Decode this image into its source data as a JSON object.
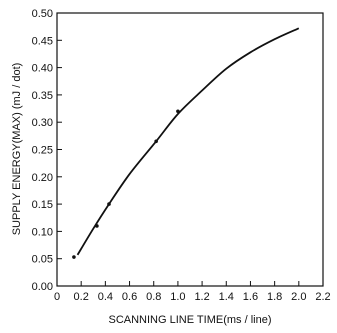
{
  "chart_data": {
    "type": "line",
    "title": "",
    "xlabel": "SCANNING  LINE  TIME(ms / line)",
    "ylabel": "SUPPLY  ENERGY(MAX)  (mJ / dot)",
    "xlim": [
      0,
      2.2
    ],
    "ylim": [
      0,
      0.5
    ],
    "x_ticks": [
      "0",
      "0.2",
      "0.4",
      "0.6",
      "0.8",
      "1.0",
      "1.2",
      "1.4",
      "1.6",
      "1.8",
      "2.0",
      "2.2"
    ],
    "y_ticks": [
      "0.00",
      "0.05",
      "0.10",
      "0.15",
      "0.20",
      "0.25",
      "0.30",
      "0.35",
      "0.40",
      "0.45",
      "0.50"
    ],
    "grid": false,
    "series": [
      {
        "style": "curve",
        "x": [
          0.17,
          0.3,
          0.43,
          0.6,
          0.82,
          1.0,
          1.2,
          1.4,
          1.6,
          1.8,
          2.0
        ],
        "values": [
          0.057,
          0.105,
          0.15,
          0.205,
          0.265,
          0.315,
          0.358,
          0.398,
          0.428,
          0.452,
          0.472
        ]
      },
      {
        "style": "points",
        "x": [
          0.14,
          0.33,
          0.43,
          0.82,
          1.0
        ],
        "values": [
          0.053,
          0.11,
          0.15,
          0.265,
          0.32
        ]
      }
    ]
  }
}
